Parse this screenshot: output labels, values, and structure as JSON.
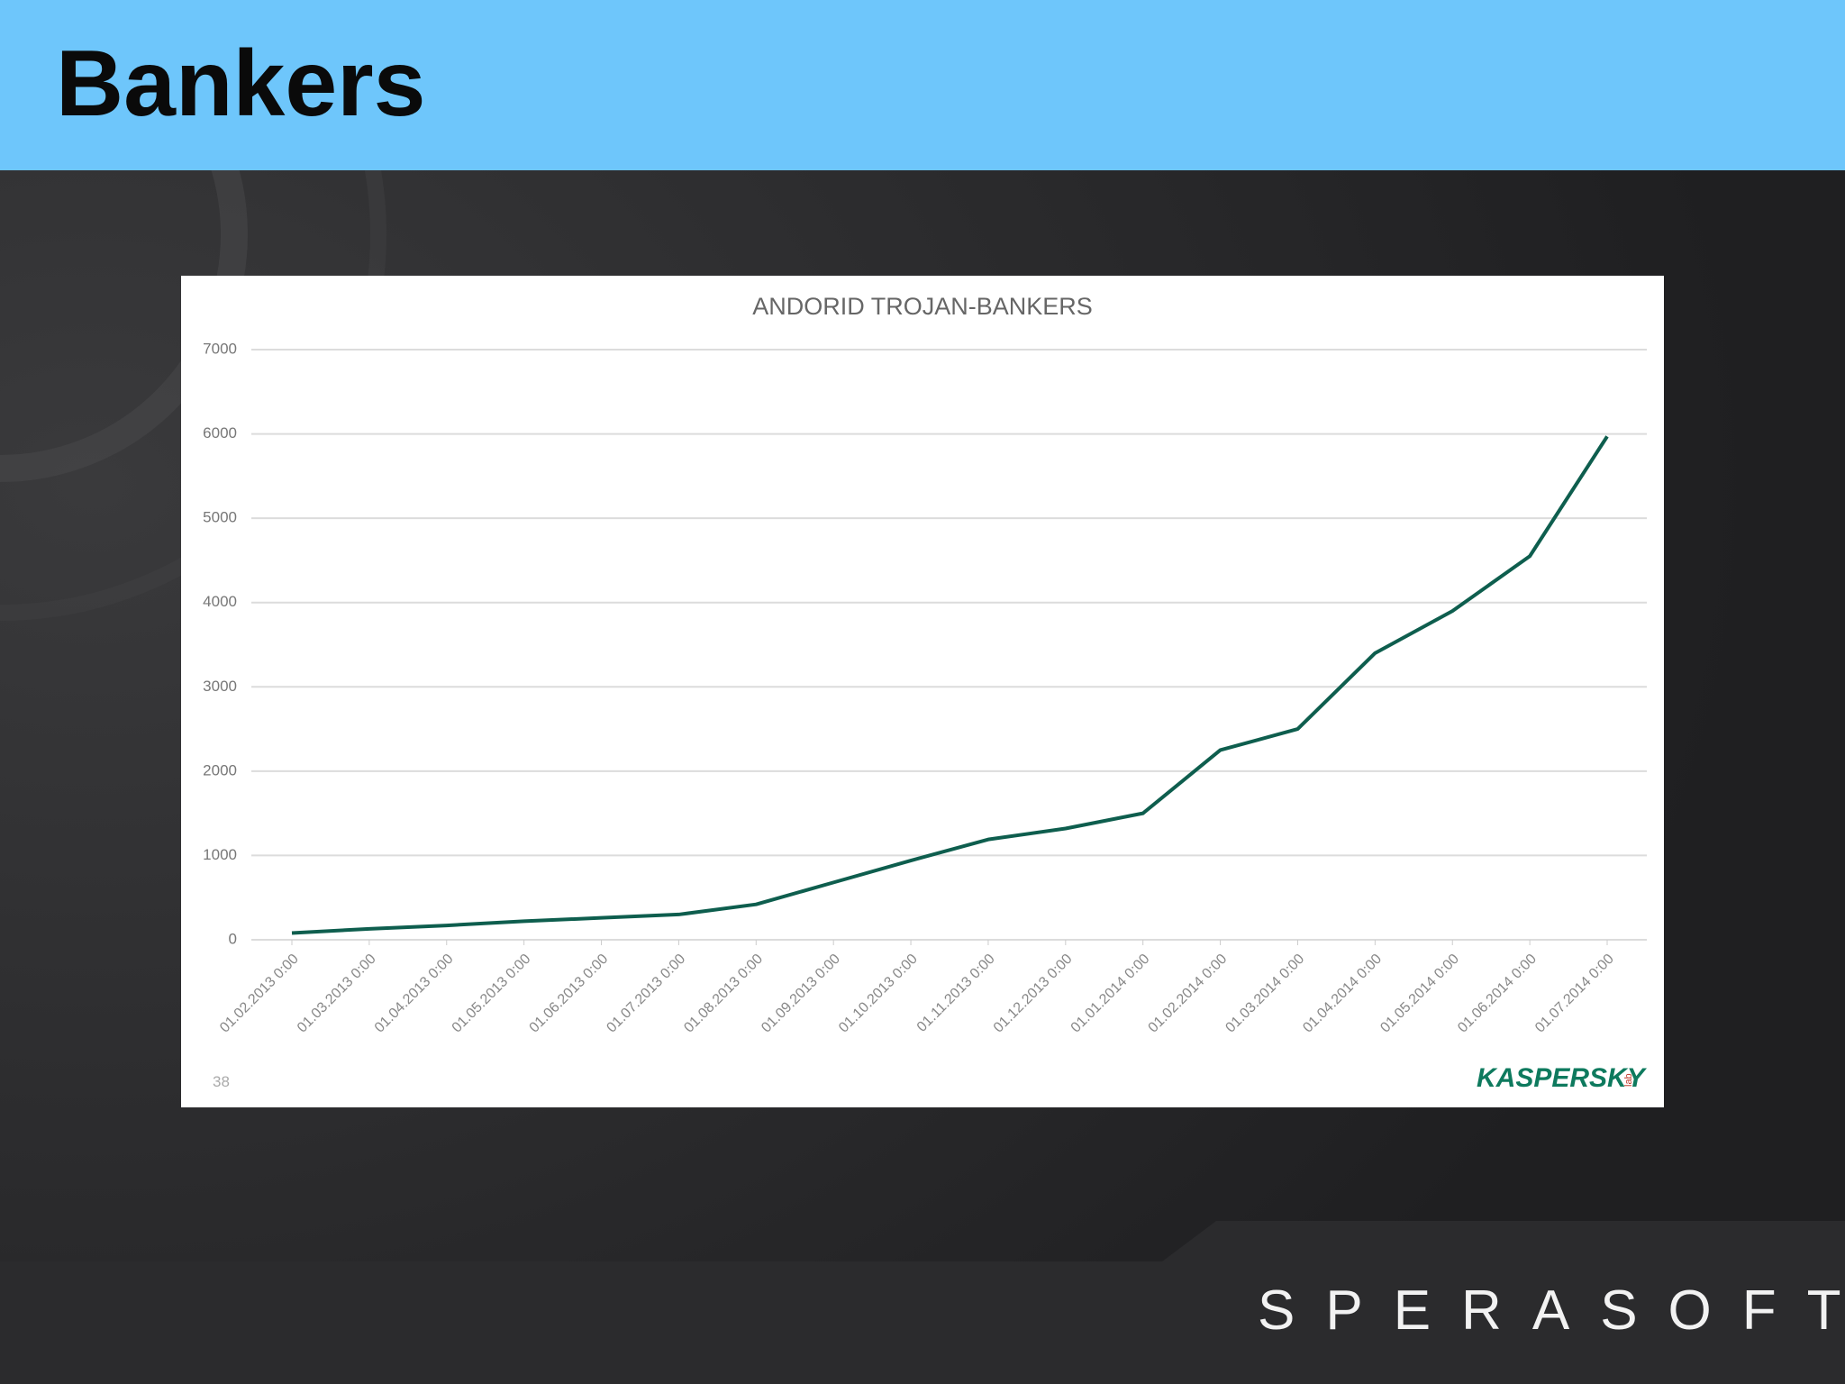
{
  "slide": {
    "title": "Bankers",
    "page_number": "38",
    "kaspersky_logo": "KASPERSKY",
    "kaspersky_lab": "lab",
    "footer_logo": "SPERASOFT"
  },
  "chart_data": {
    "type": "line",
    "title": "ANDORID TROJAN-BANKERS",
    "categories": [
      "01.02.2013 0:00",
      "01.03.2013 0:00",
      "01.04.2013 0:00",
      "01.05.2013 0:00",
      "01.06.2013 0:00",
      "01.07.2013 0:00",
      "01.08.2013 0:00",
      "01.09.2013 0:00",
      "01.10.2013 0:00",
      "01.11.2013 0:00",
      "01.12.2013 0:00",
      "01.01.2014 0:00",
      "01.02.2014 0:00",
      "01.03.2014 0:00",
      "01.04.2014 0:00",
      "01.05.2014 0:00",
      "01.06.2014 0:00",
      "01.07.2014 0:00"
    ],
    "values": [
      80,
      130,
      170,
      220,
      260,
      300,
      420,
      680,
      940,
      1190,
      1320,
      1500,
      2250,
      2500,
      3400,
      3900,
      4550,
      5970
    ],
    "color": "#0e5e4e",
    "ylim": [
      0,
      7000
    ],
    "yticks": [
      0,
      1000,
      2000,
      3000,
      4000,
      5000,
      6000,
      7000
    ],
    "grid": true
  }
}
